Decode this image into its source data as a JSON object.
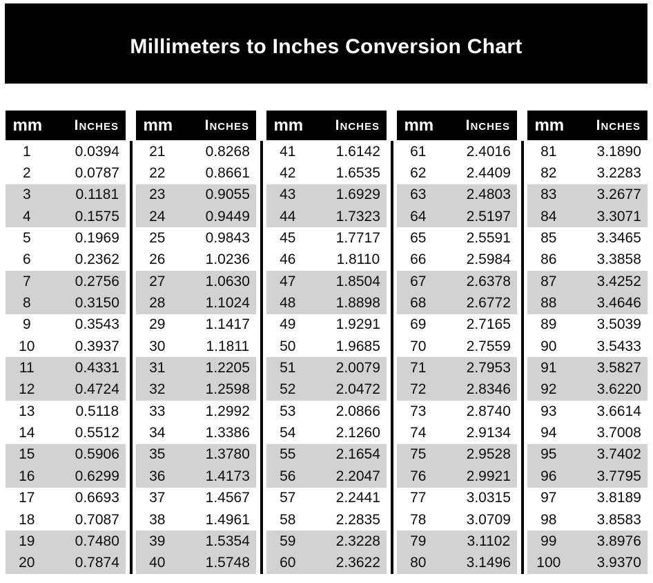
{
  "title": "Millimeters to Inches Conversion Chart",
  "table": {
    "header_mm": "mm",
    "header_inches": "Inches",
    "group_count": 5,
    "rows_per_group": 20
  },
  "colors": {
    "page_bg": "#ffffff",
    "banner_bg": "#000000",
    "banner_text": "#ffffff",
    "header_bg": "#000000",
    "header_text": "#ffffff",
    "stripe": "#d2d2d2",
    "text": "#0d0d0d",
    "divider": "#000000"
  },
  "chart_data": {
    "type": "table",
    "title": "Millimeters to Inches Conversion Chart",
    "columns": [
      "mm",
      "Inches"
    ],
    "layout": "5 column groups of 20 rows each; shading alternates every 2 rows (rows 1-2 white, 3-4 gray); black divider bars between groups",
    "rows": [
      [
        1,
        "0.0394"
      ],
      [
        2,
        "0.0787"
      ],
      [
        3,
        "0.1181"
      ],
      [
        4,
        "0.1575"
      ],
      [
        5,
        "0.1969"
      ],
      [
        6,
        "0.2362"
      ],
      [
        7,
        "0.2756"
      ],
      [
        8,
        "0.3150"
      ],
      [
        9,
        "0.3543"
      ],
      [
        10,
        "0.3937"
      ],
      [
        11,
        "0.4331"
      ],
      [
        12,
        "0.4724"
      ],
      [
        13,
        "0.5118"
      ],
      [
        14,
        "0.5512"
      ],
      [
        15,
        "0.5906"
      ],
      [
        16,
        "0.6299"
      ],
      [
        17,
        "0.6693"
      ],
      [
        18,
        "0.7087"
      ],
      [
        19,
        "0.7480"
      ],
      [
        20,
        "0.7874"
      ],
      [
        21,
        "0.8268"
      ],
      [
        22,
        "0.8661"
      ],
      [
        23,
        "0.9055"
      ],
      [
        24,
        "0.9449"
      ],
      [
        25,
        "0.9843"
      ],
      [
        26,
        "1.0236"
      ],
      [
        27,
        "1.0630"
      ],
      [
        28,
        "1.1024"
      ],
      [
        29,
        "1.1417"
      ],
      [
        30,
        "1.1811"
      ],
      [
        31,
        "1.2205"
      ],
      [
        32,
        "1.2598"
      ],
      [
        33,
        "1.2992"
      ],
      [
        34,
        "1.3386"
      ],
      [
        35,
        "1.3780"
      ],
      [
        36,
        "1.4173"
      ],
      [
        37,
        "1.4567"
      ],
      [
        38,
        "1.4961"
      ],
      [
        39,
        "1.5354"
      ],
      [
        40,
        "1.5748"
      ],
      [
        41,
        "1.6142"
      ],
      [
        42,
        "1.6535"
      ],
      [
        43,
        "1.6929"
      ],
      [
        44,
        "1.7323"
      ],
      [
        45,
        "1.7717"
      ],
      [
        46,
        "1.8110"
      ],
      [
        47,
        "1.8504"
      ],
      [
        48,
        "1.8898"
      ],
      [
        49,
        "1.9291"
      ],
      [
        50,
        "1.9685"
      ],
      [
        51,
        "2.0079"
      ],
      [
        52,
        "2.0472"
      ],
      [
        53,
        "2.0866"
      ],
      [
        54,
        "2.1260"
      ],
      [
        55,
        "2.1654"
      ],
      [
        56,
        "2.2047"
      ],
      [
        57,
        "2.2441"
      ],
      [
        58,
        "2.2835"
      ],
      [
        59,
        "2.3228"
      ],
      [
        60,
        "2.3622"
      ],
      [
        61,
        "2.4016"
      ],
      [
        62,
        "2.4409"
      ],
      [
        63,
        "2.4803"
      ],
      [
        64,
        "2.5197"
      ],
      [
        65,
        "2.5591"
      ],
      [
        66,
        "2.5984"
      ],
      [
        67,
        "2.6378"
      ],
      [
        68,
        "2.6772"
      ],
      [
        69,
        "2.7165"
      ],
      [
        70,
        "2.7559"
      ],
      [
        71,
        "2.7953"
      ],
      [
        72,
        "2.8346"
      ],
      [
        73,
        "2.8740"
      ],
      [
        74,
        "2.9134"
      ],
      [
        75,
        "2.9528"
      ],
      [
        76,
        "2.9921"
      ],
      [
        77,
        "3.0315"
      ],
      [
        78,
        "3.0709"
      ],
      [
        79,
        "3.1102"
      ],
      [
        80,
        "3.1496"
      ],
      [
        81,
        "3.1890"
      ],
      [
        82,
        "3.2283"
      ],
      [
        83,
        "3.2677"
      ],
      [
        84,
        "3.3071"
      ],
      [
        85,
        "3.3465"
      ],
      [
        86,
        "3.3858"
      ],
      [
        87,
        "3.4252"
      ],
      [
        88,
        "3.4646"
      ],
      [
        89,
        "3.5039"
      ],
      [
        90,
        "3.5433"
      ],
      [
        91,
        "3.5827"
      ],
      [
        92,
        "3.6220"
      ],
      [
        93,
        "3.6614"
      ],
      [
        94,
        "3.7008"
      ],
      [
        95,
        "3.7402"
      ],
      [
        96,
        "3.7795"
      ],
      [
        97,
        "3.8189"
      ],
      [
        98,
        "3.8583"
      ],
      [
        99,
        "3.8976"
      ],
      [
        100,
        "3.9370"
      ]
    ]
  }
}
